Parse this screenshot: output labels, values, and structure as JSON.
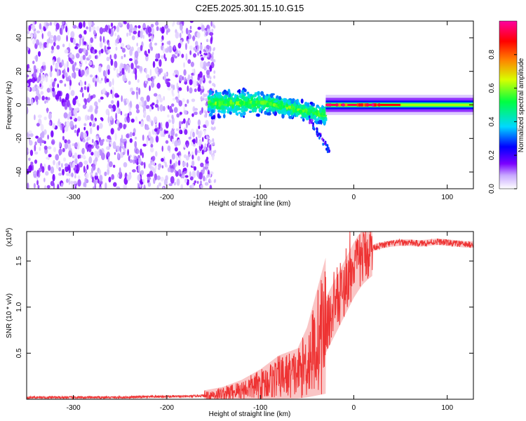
{
  "title": "C2E5.2025.301.15.10.G15",
  "chart_data": [
    {
      "type": "heatmap",
      "name": "spectrogram",
      "xlabel": "Height of straight line (km)",
      "ylabel": "Frequency (Hz)",
      "xlim": [
        -350,
        128
      ],
      "ylim": [
        -50,
        50
      ],
      "xticks": [
        -300,
        -200,
        -100,
        0,
        100
      ],
      "yticks": [
        -40,
        -20,
        0,
        20,
        40
      ],
      "colorbar": {
        "label": "Normalized spectral amplitude",
        "range": [
          0,
          1
        ],
        "ticks": [
          "0.0",
          "0.2",
          "0.4",
          "0.6",
          "0.8"
        ],
        "tick_values": [
          0.0,
          0.2,
          0.4,
          0.6,
          0.8
        ],
        "colors": [
          "#ffffff",
          "#c8a8ff",
          "#7a00ff",
          "#0000ff",
          "#00d8ff",
          "#00ff40",
          "#d8ff00",
          "#ff8000",
          "#ff0000",
          "#ff00a0"
        ]
      },
      "regions": [
        {
          "x0": -350,
          "x1": -155,
          "f0": -50,
          "f1": 50,
          "level": 0.12,
          "desc": "broadband noise"
        },
        {
          "x0": -155,
          "x1": -30,
          "f0": -12,
          "f1": 10,
          "level": 0.35,
          "desc": "noisy signal band"
        },
        {
          "x0": -30,
          "x1": 128,
          "f0": -2,
          "f1": 2,
          "level": 0.95,
          "desc": "stable signal near 0 Hz"
        }
      ]
    },
    {
      "type": "line",
      "name": "snr",
      "xlabel": "Height of straight line (km)",
      "ylabel": "SNR (10 * v/v)",
      "scale_label": "(x10",
      "scale_exp": "4",
      "scale_close": ")",
      "xlim": [
        -350,
        128
      ],
      "ylim": [
        0,
        1.82
      ],
      "xticks": [
        -300,
        -200,
        -100,
        0,
        100
      ],
      "yticks": [
        0.5,
        1.0,
        1.5
      ],
      "ytick_labels": [
        "0.5",
        "1.0",
        "1.5"
      ],
      "color": "#ee3333",
      "series": [
        {
          "name": "SNR",
          "x": [
            -350,
            -300,
            -250,
            -200,
            -180,
            -160,
            -150,
            -140,
            -130,
            -120,
            -110,
            -100,
            -90,
            -80,
            -70,
            -60,
            -50,
            -45,
            -40,
            -35,
            -30,
            -25,
            -20,
            -15,
            -10,
            -5,
            0,
            5,
            10,
            15,
            20,
            25,
            30,
            40,
            50,
            60,
            70,
            80,
            90,
            100,
            110,
            120,
            128
          ],
          "y": [
            0.02,
            0.02,
            0.02,
            0.03,
            0.03,
            0.04,
            0.05,
            0.06,
            0.08,
            0.1,
            0.13,
            0.16,
            0.2,
            0.24,
            0.26,
            0.28,
            0.4,
            0.5,
            0.6,
            0.7,
            0.8,
            0.9,
            1.0,
            1.1,
            1.2,
            1.3,
            1.4,
            1.48,
            1.55,
            1.6,
            1.64,
            1.66,
            1.67,
            1.69,
            1.7,
            1.7,
            1.69,
            1.7,
            1.71,
            1.7,
            1.69,
            1.68,
            1.68
          ]
        }
      ]
    }
  ]
}
